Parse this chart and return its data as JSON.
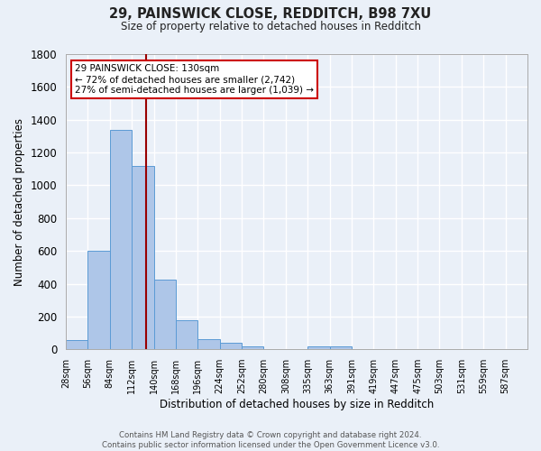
{
  "title_line1": "29, PAINSWICK CLOSE, REDDITCH, B98 7XU",
  "title_line2": "Size of property relative to detached houses in Redditch",
  "xlabel": "Distribution of detached houses by size in Redditch",
  "ylabel": "Number of detached properties",
  "footnote_line1": "Contains HM Land Registry data © Crown copyright and database right 2024.",
  "footnote_line2": "Contains public sector information licensed under the Open Government Licence v3.0.",
  "categories": [
    "28sqm",
    "56sqm",
    "84sqm",
    "112sqm",
    "140sqm",
    "168sqm",
    "196sqm",
    "224sqm",
    "252sqm",
    "280sqm",
    "308sqm",
    "335sqm",
    "363sqm",
    "391sqm",
    "419sqm",
    "447sqm",
    "475sqm",
    "503sqm",
    "531sqm",
    "559sqm",
    "587sqm"
  ],
  "values": [
    55,
    600,
    1340,
    1120,
    425,
    175,
    60,
    40,
    15,
    0,
    0,
    20,
    20,
    0,
    0,
    0,
    0,
    0,
    0,
    0,
    0
  ],
  "bar_color": "#aec6e8",
  "bar_edge_color": "#5b9bd5",
  "background_color": "#eaf0f8",
  "grid_color": "#ffffff",
  "property_line_color": "#990000",
  "annotation_text": "29 PAINSWICK CLOSE: 130sqm\n← 72% of detached houses are smaller (2,742)\n27% of semi-detached houses are larger (1,039) →",
  "annotation_box_color": "#ffffff",
  "annotation_box_edge_color": "#cc0000",
  "ylim": [
    0,
    1800
  ],
  "yticks": [
    0,
    200,
    400,
    600,
    800,
    1000,
    1200,
    1400,
    1600,
    1800
  ],
  "n_categories": 21,
  "bin_width": 28
}
